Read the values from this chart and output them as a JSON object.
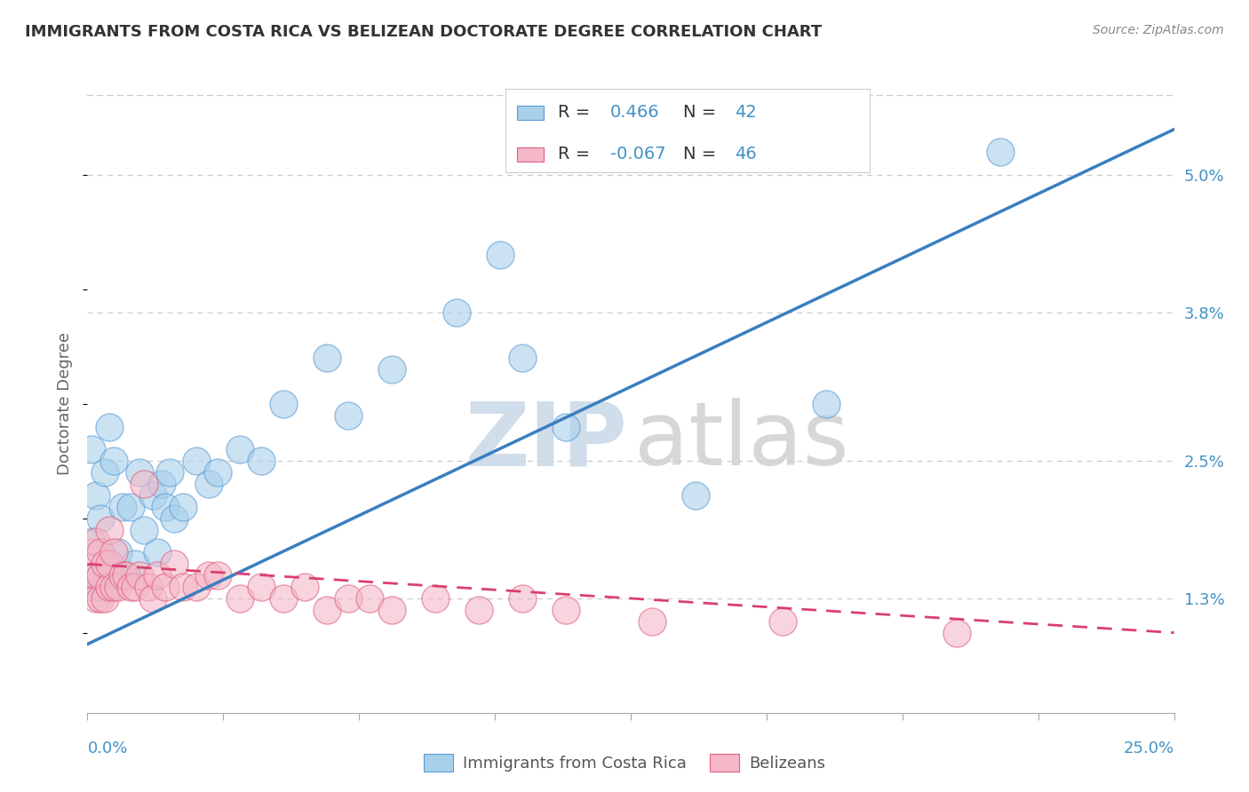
{
  "title": "IMMIGRANTS FROM COSTA RICA VS BELIZEAN DOCTORATE DEGREE CORRELATION CHART",
  "source": "Source: ZipAtlas.com",
  "ylabel": "Doctorate Degree",
  "ylabel_right_ticks": [
    "1.3%",
    "2.5%",
    "3.8%",
    "5.0%"
  ],
  "ylabel_right_vals": [
    0.013,
    0.025,
    0.038,
    0.05
  ],
  "xmin": 0.0,
  "xmax": 0.25,
  "ymin": 0.003,
  "ymax": 0.057,
  "legend_blue_r_label": "R = ",
  "legend_blue_r_val": "0.466",
  "legend_blue_n_label": "N = ",
  "legend_blue_n_val": "42",
  "legend_pink_r_label": "R = ",
  "legend_pink_r_val": "-0.067",
  "legend_pink_n_label": "N = ",
  "legend_pink_n_val": "46",
  "legend_label_blue": "Immigrants from Costa Rica",
  "legend_label_pink": "Belizeans",
  "blue_fill": "#a8d0ea",
  "blue_edge": "#5b9bd5",
  "pink_fill": "#f4b8c8",
  "pink_edge": "#e06080",
  "blue_line_color": "#3a7ebf",
  "pink_line_color": "#d94070",
  "watermark_zip_color": "#c8d8e8",
  "watermark_atlas_color": "#d0d0d0",
  "blue_x": [
    0.001,
    0.001,
    0.002,
    0.002,
    0.003,
    0.003,
    0.004,
    0.004,
    0.005,
    0.005,
    0.006,
    0.006,
    0.007,
    0.008,
    0.009,
    0.01,
    0.011,
    0.012,
    0.013,
    0.015,
    0.016,
    0.017,
    0.018,
    0.019,
    0.02,
    0.022,
    0.025,
    0.028,
    0.03,
    0.035,
    0.04,
    0.045,
    0.055,
    0.06,
    0.07,
    0.085,
    0.095,
    0.1,
    0.11,
    0.14,
    0.17,
    0.21
  ],
  "blue_y": [
    0.018,
    0.026,
    0.015,
    0.022,
    0.014,
    0.02,
    0.014,
    0.024,
    0.016,
    0.028,
    0.015,
    0.025,
    0.017,
    0.021,
    0.015,
    0.021,
    0.016,
    0.024,
    0.019,
    0.022,
    0.017,
    0.023,
    0.021,
    0.024,
    0.02,
    0.021,
    0.025,
    0.023,
    0.024,
    0.026,
    0.025,
    0.03,
    0.034,
    0.029,
    0.033,
    0.038,
    0.043,
    0.034,
    0.028,
    0.022,
    0.03,
    0.052
  ],
  "pink_x": [
    0.001,
    0.001,
    0.002,
    0.002,
    0.002,
    0.003,
    0.003,
    0.003,
    0.004,
    0.004,
    0.005,
    0.005,
    0.005,
    0.006,
    0.006,
    0.007,
    0.008,
    0.009,
    0.01,
    0.011,
    0.012,
    0.013,
    0.014,
    0.015,
    0.016,
    0.018,
    0.02,
    0.022,
    0.025,
    0.028,
    0.03,
    0.035,
    0.04,
    0.045,
    0.05,
    0.055,
    0.06,
    0.065,
    0.07,
    0.08,
    0.09,
    0.1,
    0.11,
    0.13,
    0.16,
    0.2
  ],
  "pink_y": [
    0.014,
    0.017,
    0.013,
    0.015,
    0.018,
    0.013,
    0.015,
    0.017,
    0.013,
    0.016,
    0.014,
    0.016,
    0.019,
    0.014,
    0.017,
    0.014,
    0.015,
    0.015,
    0.014,
    0.014,
    0.015,
    0.023,
    0.014,
    0.013,
    0.015,
    0.014,
    0.016,
    0.014,
    0.014,
    0.015,
    0.015,
    0.013,
    0.014,
    0.013,
    0.014,
    0.012,
    0.013,
    0.013,
    0.012,
    0.013,
    0.012,
    0.013,
    0.012,
    0.011,
    0.011,
    0.01
  ],
  "blue_trendline_x": [
    0.0,
    0.25
  ],
  "blue_trendline_y": [
    0.009,
    0.054
  ],
  "pink_trendline_x": [
    0.0,
    0.25
  ],
  "pink_trendline_y": [
    0.016,
    0.01
  ],
  "background_color": "#ffffff",
  "grid_color": "#cccccc",
  "title_color": "#333333",
  "axis_label_color": "#4292c6",
  "text_color_dark": "#333333"
}
